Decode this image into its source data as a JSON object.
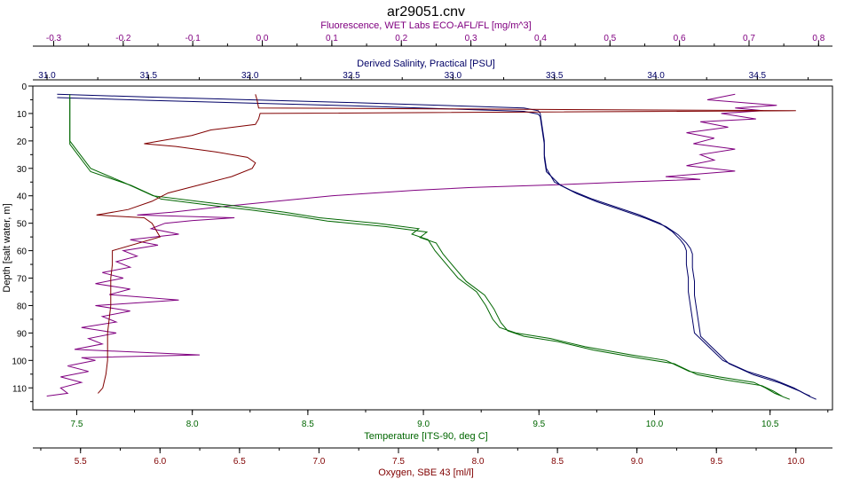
{
  "chart_data": {
    "type": "line",
    "title": "ar29051.cnv",
    "colors": {
      "fluorescence": "#800080",
      "salinity": "#000066",
      "temperature": "#006600",
      "oxygen": "#800000",
      "frame": "#000000"
    },
    "y_axis": {
      "label": "Depth [salt water, m]",
      "range": [
        0,
        118
      ],
      "ticks": [
        "0",
        "10",
        "20",
        "30",
        "40",
        "50",
        "60",
        "70",
        "80",
        "90",
        "100",
        "110"
      ],
      "reversed": true
    },
    "axes": {
      "fluorescence": {
        "label": "Fluorescence, WET Labs ECO-AFL/FL [mg/m^3]",
        "range": [
          -0.33,
          0.82
        ],
        "ticks": [
          "-0.3",
          "-0.2",
          "-0.1",
          "0.0",
          "0.1",
          "0.2",
          "0.3",
          "0.4",
          "0.5",
          "0.6",
          "0.7",
          "0.8"
        ]
      },
      "salinity": {
        "label": "Derived Salinity, Practical [PSU]",
        "range": [
          30.93,
          34.87
        ],
        "ticks": [
          "31.0",
          "31.5",
          "32.0",
          "32.5",
          "33.0",
          "33.5",
          "34.0",
          "34.5"
        ]
      },
      "temperature": {
        "label": "Temperature [ITS-90, deg C]",
        "range": [
          7.31,
          10.77
        ],
        "ticks": [
          "7.5",
          "8.0",
          "8.5",
          "9.0",
          "9.5",
          "10.0",
          "10.5"
        ]
      },
      "oxygen": {
        "label": "Oxygen, SBE 43 [ml/l]",
        "range": [
          5.2,
          10.23
        ],
        "ticks": [
          "5.5",
          "6.0",
          "6.5",
          "7.0",
          "7.5",
          "8.0",
          "8.5",
          "9.0",
          "9.5",
          "10.0"
        ]
      }
    },
    "series": [
      {
        "key": "fluorescence",
        "depth": [
          3,
          5,
          7,
          8,
          9,
          10,
          12,
          13,
          15,
          17,
          19,
          21,
          23,
          25,
          27,
          29,
          31,
          33,
          34,
          35,
          36,
          37,
          38,
          40,
          42,
          44,
          46,
          47,
          48,
          49,
          50,
          52,
          54,
          56,
          58,
          60,
          62,
          64,
          66,
          68,
          70,
          72,
          74,
          76,
          78,
          80,
          82,
          84,
          86,
          88,
          90,
          92,
          94,
          96,
          98,
          99,
          100,
          102,
          104,
          106,
          108,
          110,
          112,
          113
        ],
        "values": [
          0.68,
          0.64,
          0.74,
          0.68,
          0.72,
          0.66,
          0.71,
          0.63,
          0.67,
          0.61,
          0.65,
          0.62,
          0.68,
          0.63,
          0.65,
          0.61,
          0.68,
          0.58,
          0.63,
          0.52,
          0.42,
          0.3,
          0.22,
          0.1,
          0.02,
          -0.06,
          -0.13,
          -0.18,
          -0.04,
          -0.1,
          -0.14,
          -0.16,
          -0.12,
          -0.19,
          -0.15,
          -0.2,
          -0.18,
          -0.21,
          -0.19,
          -0.23,
          -0.2,
          -0.24,
          -0.19,
          -0.22,
          -0.12,
          -0.24,
          -0.19,
          -0.23,
          -0.21,
          -0.26,
          -0.21,
          -0.25,
          -0.23,
          -0.27,
          -0.09,
          -0.26,
          -0.24,
          -0.28,
          -0.25,
          -0.29,
          -0.26,
          -0.29,
          -0.28,
          -0.31
        ]
      },
      {
        "key": "salinity",
        "depth": [
          3,
          4,
          6,
          8,
          9,
          10,
          15,
          20,
          25,
          30,
          35,
          38,
          41,
          44,
          47,
          50,
          53,
          56,
          58,
          60,
          65,
          70,
          75,
          80,
          85,
          90,
          95,
          100,
          104,
          107,
          110,
          112,
          113
        ],
        "values": [
          31.05,
          31.5,
          32.5,
          33.35,
          33.42,
          33.43,
          33.44,
          33.45,
          33.45,
          33.46,
          33.5,
          33.58,
          33.68,
          33.8,
          33.92,
          34.02,
          34.08,
          34.12,
          34.14,
          34.15,
          34.15,
          34.16,
          34.16,
          34.17,
          34.18,
          34.19,
          34.26,
          34.33,
          34.45,
          34.58,
          34.68,
          34.73,
          34.76
        ]
      },
      {
        "key": "temperature",
        "depth": [
          3,
          10,
          20,
          30,
          35,
          40,
          42,
          44,
          46,
          48,
          50,
          52,
          54,
          56,
          60,
          65,
          70,
          75,
          80,
          85,
          88,
          90,
          92,
          95,
          98,
          100,
          104,
          106,
          108,
          110,
          112,
          113
        ],
        "values": [
          7.47,
          7.47,
          7.47,
          7.56,
          7.7,
          7.83,
          8.02,
          8.22,
          8.4,
          8.55,
          8.8,
          8.98,
          8.95,
          9.02,
          9.05,
          9.1,
          9.15,
          9.23,
          9.27,
          9.3,
          9.33,
          9.4,
          9.55,
          9.7,
          9.9,
          10.05,
          10.15,
          10.28,
          10.43,
          10.48,
          10.52,
          10.55
        ]
      },
      {
        "key": "oxygen",
        "depth": [
          3,
          5,
          8,
          9,
          10,
          12,
          14,
          16,
          18,
          20,
          21,
          22,
          24,
          26,
          28,
          30,
          33,
          36,
          39,
          42,
          45,
          47,
          48,
          50,
          55,
          60,
          65,
          70,
          75,
          80,
          85,
          90,
          95,
          100,
          105,
          110,
          112
        ],
        "values": [
          6.6,
          6.61,
          6.62,
          10.0,
          6.63,
          6.62,
          6.6,
          6.32,
          6.2,
          6.0,
          5.9,
          6.1,
          6.35,
          6.55,
          6.6,
          6.58,
          6.45,
          6.25,
          6.05,
          5.95,
          5.8,
          5.6,
          5.9,
          5.95,
          6.0,
          5.7,
          5.7,
          5.69,
          5.69,
          5.69,
          5.68,
          5.67,
          5.67,
          5.67,
          5.66,
          5.64,
          5.61
        ]
      }
    ]
  }
}
